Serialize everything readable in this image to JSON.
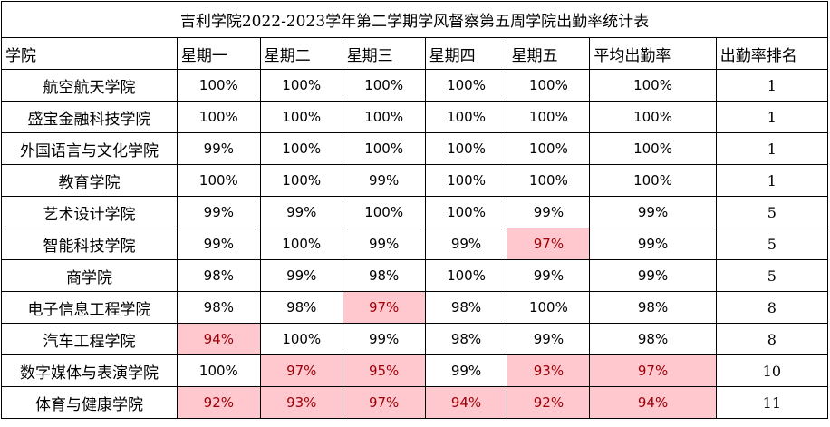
{
  "title": "吉利学院2022-2023学年第二学期学风督察第五周学院出勤率统计表",
  "headers": [
    "学院",
    "星期一",
    "星期二",
    "星期三",
    "星期四",
    "星期五",
    "平均出勤率",
    "出勤率排名"
  ],
  "highlight_color": "#ffc7ce",
  "highlight_text_color": "#9c0006",
  "rows": [
    {
      "college": "航空航天学院",
      "mon": "100%",
      "tue": "100%",
      "wed": "100%",
      "thu": "100%",
      "fri": "100%",
      "avg": "100%",
      "rank": "1",
      "highlight": []
    },
    {
      "college": "盛宝金融科技学院",
      "mon": "100%",
      "tue": "100%",
      "wed": "100%",
      "thu": "100%",
      "fri": "100%",
      "avg": "100%",
      "rank": "1",
      "highlight": []
    },
    {
      "college": "外国语言与文化学院",
      "mon": "99%",
      "tue": "100%",
      "wed": "100%",
      "thu": "100%",
      "fri": "100%",
      "avg": "100%",
      "rank": "1",
      "highlight": []
    },
    {
      "college": "教育学院",
      "mon": "100%",
      "tue": "100%",
      "wed": "99%",
      "thu": "100%",
      "fri": "100%",
      "avg": "100%",
      "rank": "1",
      "highlight": []
    },
    {
      "college": "艺术设计学院",
      "mon": "99%",
      "tue": "99%",
      "wed": "100%",
      "thu": "100%",
      "fri": "99%",
      "avg": "99%",
      "rank": "5",
      "highlight": []
    },
    {
      "college": "智能科技学院",
      "mon": "99%",
      "tue": "100%",
      "wed": "99%",
      "thu": "99%",
      "fri": "97%",
      "avg": "99%",
      "rank": "5",
      "highlight": [
        "fri"
      ]
    },
    {
      "college": "商学院",
      "mon": "98%",
      "tue": "99%",
      "wed": "98%",
      "thu": "100%",
      "fri": "99%",
      "avg": "99%",
      "rank": "5",
      "highlight": []
    },
    {
      "college": "电子信息工程学院",
      "mon": "98%",
      "tue": "98%",
      "wed": "97%",
      "thu": "98%",
      "fri": "100%",
      "avg": "98%",
      "rank": "8",
      "highlight": [
        "wed"
      ]
    },
    {
      "college": "汽车工程学院",
      "mon": "94%",
      "tue": "100%",
      "wed": "99%",
      "thu": "98%",
      "fri": "99%",
      "avg": "98%",
      "rank": "8",
      "highlight": [
        "mon"
      ]
    },
    {
      "college": "数字媒体与表演学院",
      "mon": "100%",
      "tue": "97%",
      "wed": "95%",
      "thu": "99%",
      "fri": "93%",
      "avg": "97%",
      "rank": "10",
      "highlight": [
        "tue",
        "wed",
        "fri",
        "avg"
      ]
    },
    {
      "college": "体育与健康学院",
      "mon": "92%",
      "tue": "93%",
      "wed": "97%",
      "thu": "94%",
      "fri": "92%",
      "avg": "94%",
      "rank": "11",
      "highlight": [
        "mon",
        "tue",
        "wed",
        "thu",
        "fri",
        "avg"
      ]
    }
  ]
}
